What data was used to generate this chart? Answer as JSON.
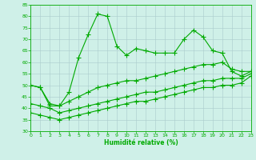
{
  "xlabel": "Humidité relative (%)",
  "background_color": "#cff0e8",
  "grid_color": "#aacccc",
  "line_color": "#00aa00",
  "xlim": [
    0,
    23
  ],
  "ylim": [
    30,
    85
  ],
  "yticks": [
    30,
    35,
    40,
    45,
    50,
    55,
    60,
    65,
    70,
    75,
    80,
    85
  ],
  "xticks": [
    0,
    1,
    2,
    3,
    4,
    5,
    6,
    7,
    8,
    9,
    10,
    11,
    12,
    13,
    14,
    15,
    16,
    17,
    18,
    19,
    20,
    21,
    22,
    23
  ],
  "series1_x": [
    0,
    1,
    2,
    3,
    4,
    5,
    6,
    7,
    8,
    9,
    10,
    11,
    12,
    13,
    14,
    15,
    16,
    17,
    18,
    19,
    20,
    21,
    22,
    23
  ],
  "series1_y": [
    50,
    49,
    41,
    41,
    47,
    62,
    72,
    81,
    80,
    67,
    63,
    66,
    65,
    64,
    64,
    64,
    70,
    74,
    71,
    65,
    64,
    56,
    54,
    56
  ],
  "series2_x": [
    0,
    1,
    2,
    3,
    4,
    5,
    6,
    7,
    8,
    9,
    10,
    11,
    12,
    13,
    14,
    15,
    16,
    17,
    18,
    19,
    20,
    21,
    22,
    23
  ],
  "series2_y": [
    50,
    49,
    42,
    41,
    43,
    45,
    47,
    49,
    50,
    51,
    52,
    52,
    53,
    54,
    55,
    56,
    57,
    58,
    59,
    59,
    60,
    57,
    56,
    56
  ],
  "series3_x": [
    0,
    1,
    2,
    3,
    4,
    5,
    6,
    7,
    8,
    9,
    10,
    11,
    12,
    13,
    14,
    15,
    16,
    17,
    18,
    19,
    20,
    21,
    22,
    23
  ],
  "series3_y": [
    42,
    41,
    40,
    38,
    39,
    40,
    41,
    42,
    43,
    44,
    45,
    46,
    47,
    47,
    48,
    49,
    50,
    51,
    52,
    52,
    53,
    53,
    53,
    55
  ],
  "series4_x": [
    0,
    1,
    2,
    3,
    4,
    5,
    6,
    7,
    8,
    9,
    10,
    11,
    12,
    13,
    14,
    15,
    16,
    17,
    18,
    19,
    20,
    21,
    22,
    23
  ],
  "series4_y": [
    38,
    37,
    36,
    35,
    36,
    37,
    38,
    39,
    40,
    41,
    42,
    43,
    43,
    44,
    45,
    46,
    47,
    48,
    49,
    49,
    50,
    50,
    51,
    54
  ]
}
